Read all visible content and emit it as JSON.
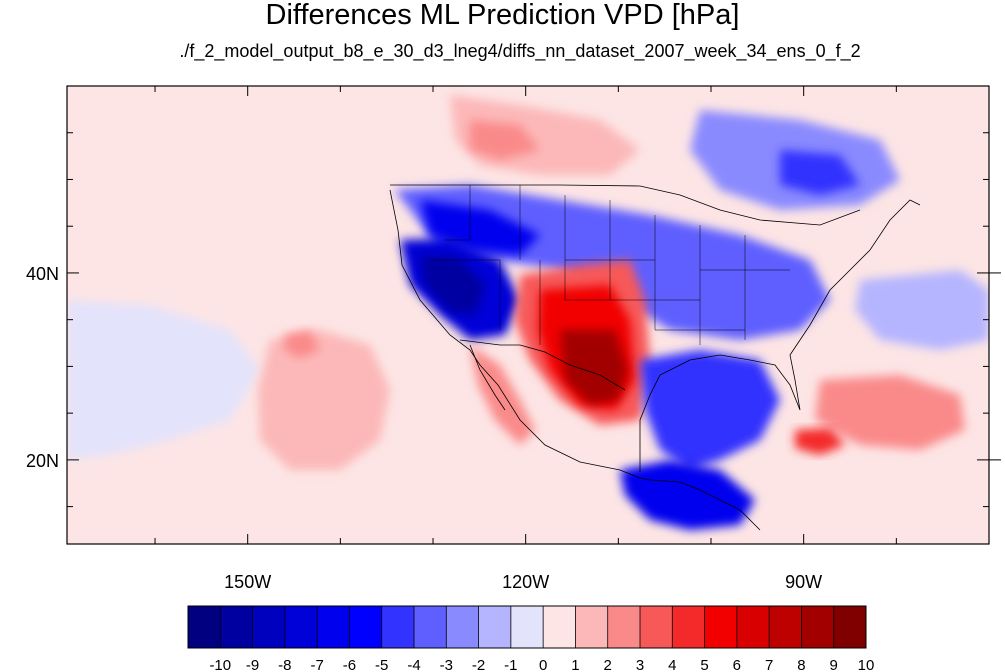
{
  "title": "Differences ML Prediction VPD [hPa]",
  "subtitle": "./f_2_model_output_b8_e_30_d3_lneg4/diffs_nn_dataset_2007_week_34_ens_0_f_2",
  "map": {
    "lon_range": [
      -169.5,
      -70.0
    ],
    "lat_range": [
      11.0,
      60.0
    ],
    "lon_ticks": [
      {
        "value": -150,
        "label": "150W"
      },
      {
        "value": -120,
        "label": "120W"
      },
      {
        "value": -90,
        "label": "90W"
      }
    ],
    "lat_ticks": [
      {
        "value": 40,
        "label": "40N"
      },
      {
        "value": 20,
        "label": "20N"
      }
    ],
    "field_regions": [
      {
        "name": "pacific-background",
        "level": 0.5
      },
      {
        "name": "pacific-positive-patch",
        "level": 1.5
      },
      {
        "name": "pacific-positive-core",
        "level": 2.5
      },
      {
        "name": "west-coast-negative",
        "level": -4.5
      },
      {
        "name": "great-basin-negative-core",
        "level": -7.5
      },
      {
        "name": "southwest-positive",
        "level": 4.5
      },
      {
        "name": "texas-positive-core",
        "level": 8.5
      },
      {
        "name": "gulf-negative",
        "level": -4.5
      },
      {
        "name": "mexico-west-positive",
        "level": 3.5
      },
      {
        "name": "canada-positive",
        "level": 1.5
      },
      {
        "name": "canada-east-negative",
        "level": -3.5
      },
      {
        "name": "atlantic-positive",
        "level": 2.5
      },
      {
        "name": "caribbean-positive-core",
        "level": 5.5
      }
    ]
  },
  "colorbar": {
    "labels": [
      "-10",
      "-9",
      "-8",
      "-7",
      "-6",
      "-5",
      "-4",
      "-3",
      "-2",
      "-1",
      "0",
      "1",
      "2",
      "3",
      "4",
      "5",
      "6",
      "7",
      "8",
      "9",
      "10"
    ],
    "colors": [
      "#000080",
      "#0000a0",
      "#0000bf",
      "#0000d8",
      "#0000ee",
      "#0000ff",
      "#3333ff",
      "#5f5fff",
      "#8a8aff",
      "#b5b5ff",
      "#e3e3fb",
      "#fde5e5",
      "#fcb8b8",
      "#fa8a8a",
      "#f75959",
      "#f42a2a",
      "#f20000",
      "#d80000",
      "#bd0000",
      "#a20000",
      "#800000"
    ]
  }
}
